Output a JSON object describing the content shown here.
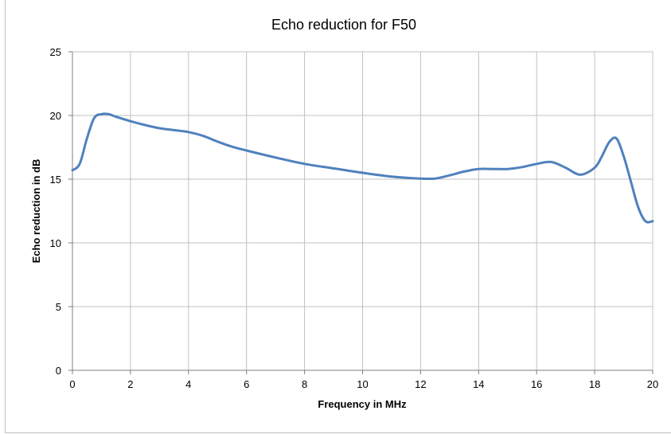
{
  "chart_data": {
    "type": "line",
    "title": "Echo reduction for F50",
    "xlabel": "Frequency in MHz",
    "ylabel": "Echo reduction in dB",
    "xlim": [
      0,
      20
    ],
    "ylim": [
      0,
      25
    ],
    "x_ticks": [
      0,
      2,
      4,
      6,
      8,
      10,
      12,
      14,
      16,
      18,
      20
    ],
    "y_ticks": [
      0,
      5,
      10,
      15,
      20,
      25
    ],
    "x_tick_labels": [
      "0",
      "2",
      "4",
      "6",
      "8",
      "10",
      "12",
      "14",
      "16",
      "18",
      "20"
    ],
    "y_tick_labels": [
      "0",
      "5",
      "10",
      "15",
      "20",
      "25"
    ],
    "grid": true,
    "legend": "none",
    "series": [
      {
        "color": "#4f81bd",
        "x": [
          0,
          0.25,
          0.5,
          0.75,
          1.0,
          1.25,
          1.5,
          2.0,
          2.5,
          3.0,
          3.5,
          4.0,
          4.5,
          5.0,
          5.5,
          6.0,
          7.0,
          8.0,
          9.0,
          10.0,
          11.0,
          12.0,
          12.5,
          13.0,
          13.5,
          14.0,
          14.5,
          15.0,
          15.5,
          16.0,
          16.5,
          17.0,
          17.5,
          18.0,
          18.25,
          18.5,
          18.75,
          19.0,
          19.25,
          19.5,
          19.75,
          20.0
        ],
        "y": [
          15.7,
          16.2,
          18.2,
          19.8,
          20.1,
          20.1,
          19.9,
          19.55,
          19.25,
          19.0,
          18.85,
          18.7,
          18.4,
          17.95,
          17.55,
          17.25,
          16.7,
          16.2,
          15.85,
          15.5,
          15.2,
          15.05,
          15.05,
          15.3,
          15.6,
          15.8,
          15.8,
          15.8,
          15.95,
          16.2,
          16.35,
          15.9,
          15.35,
          15.9,
          16.8,
          17.9,
          18.2,
          16.8,
          14.8,
          12.8,
          11.7,
          11.7
        ]
      }
    ]
  }
}
